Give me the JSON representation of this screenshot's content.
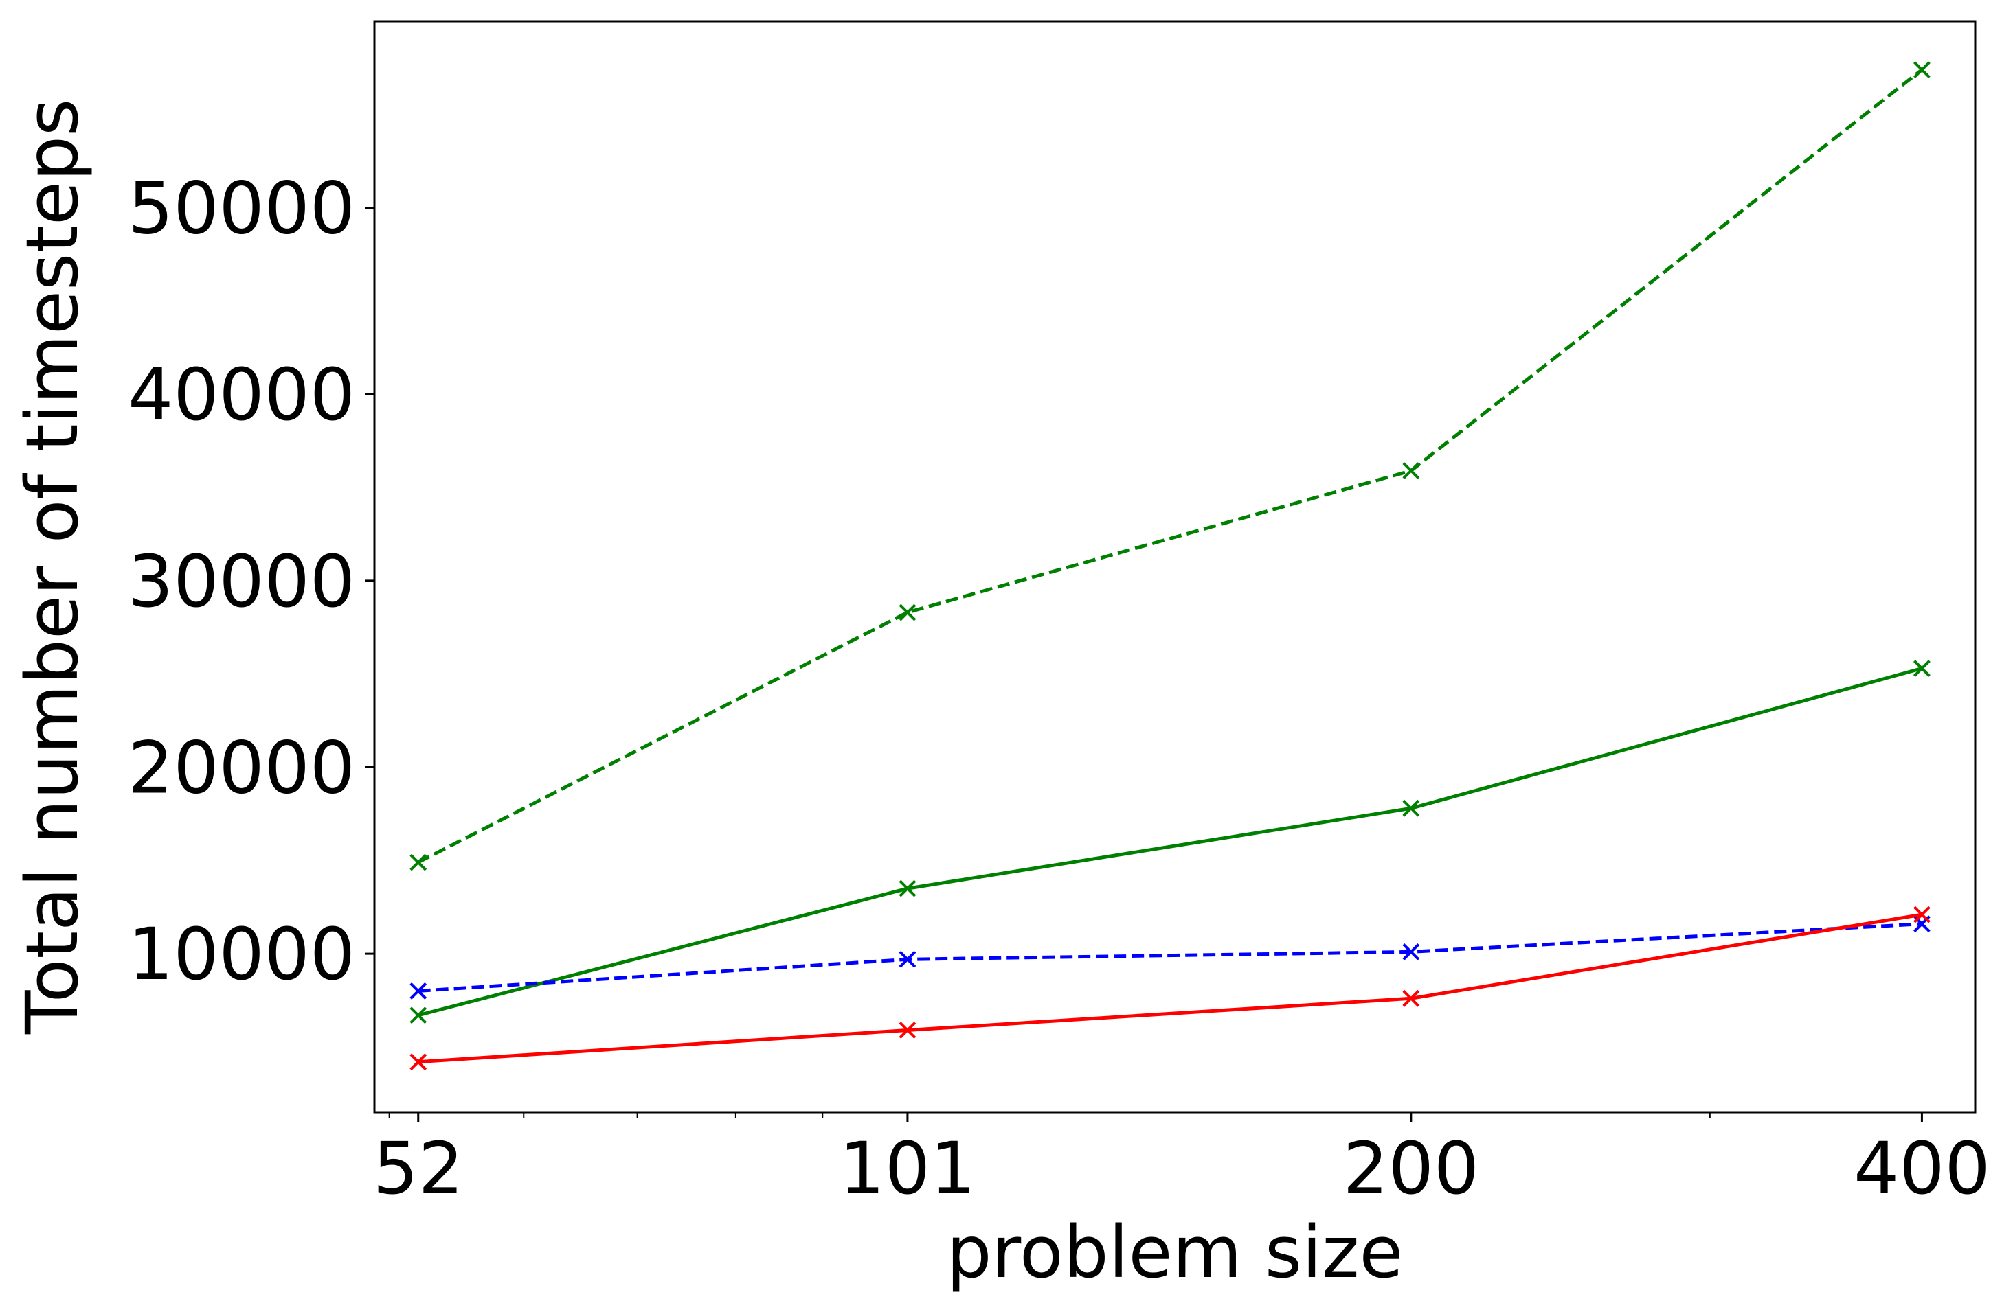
{
  "chart_data": {
    "type": "line",
    "title": "",
    "xlabel": "problem size",
    "ylabel": "Total number of timesteps",
    "x_scale": "log",
    "x": [
      52,
      101,
      200,
      400
    ],
    "x_ticks": [
      "52",
      "101",
      "200",
      "400"
    ],
    "xlim": [
      49,
      430
    ],
    "y_ticks": [
      10000,
      20000,
      30000,
      40000,
      50000
    ],
    "y_tick_labels": [
      "10000",
      "20000",
      "30000",
      "40000",
      "50000"
    ],
    "ylim": [
      1500,
      60000
    ],
    "grid": false,
    "legend": "none",
    "series": [
      {
        "color": "#008000",
        "linestyle": "dashed",
        "marker": "x",
        "values": [
          14900,
          28300,
          35900,
          57400
        ]
      },
      {
        "color": "#008000",
        "linestyle": "solid",
        "marker": "x",
        "values": [
          6700,
          13500,
          17800,
          25300
        ]
      },
      {
        "color": "#0000ff",
        "linestyle": "dashed",
        "marker": "x",
        "values": [
          8000,
          9700,
          10100,
          11600
        ]
      },
      {
        "color": "#ff0000",
        "linestyle": "solid",
        "marker": "x",
        "values": [
          4200,
          5900,
          7600,
          12100
        ]
      }
    ]
  }
}
